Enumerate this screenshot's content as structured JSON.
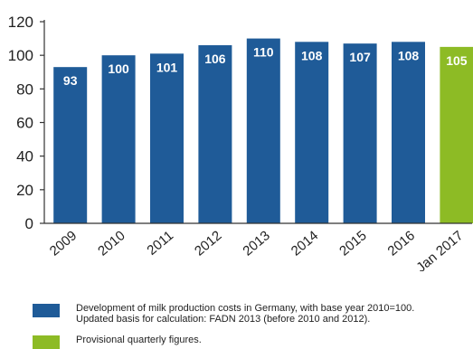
{
  "chart_data": {
    "type": "bar",
    "categories": [
      "2009",
      "2010",
      "2011",
      "2012",
      "2013",
      "2014",
      "2015",
      "2016",
      "Jan 2017"
    ],
    "values": [
      93,
      100,
      101,
      106,
      110,
      108,
      107,
      108,
      105
    ],
    "ylim": [
      0,
      120
    ],
    "yticks": [
      "0",
      "20",
      "40",
      "60",
      "80",
      "100",
      "120"
    ],
    "grid": false,
    "colors": {
      "final": "#1f5b98",
      "provisional": "#8dbb25"
    },
    "provisional_categories": [
      "Jan 2017"
    ]
  },
  "legend": {
    "items": [
      {
        "color": "#1f5b98",
        "lines": [
          "Development of milk production costs in Germany, with base year 2010=100.",
          "Updated basis for calculation: FADN 2013 (before 2010 and 2012)."
        ]
      },
      {
        "color": "#8dbb25",
        "lines": [
          "Provisional quarterly figures."
        ]
      }
    ]
  }
}
